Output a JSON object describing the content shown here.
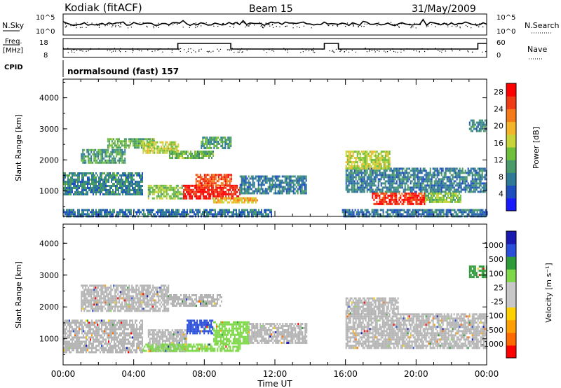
{
  "header": {
    "station": "Kodiak (fitACF)",
    "beam": "Beam 15",
    "date": "31/May/2009"
  },
  "status_panels": {
    "nsky_label": "N.Sky",
    "nsearch_label": "N.Search",
    "freq_label_1": "Freq.",
    "freq_label_2": "[MHz]",
    "nave_label": "Nave",
    "cpid_label": "CPID",
    "noise_left_ticks": [
      "10^5",
      "10^0"
    ],
    "noise_right_ticks": [
      "10^5",
      "10^0"
    ],
    "freq_ticks": [
      "18",
      "8"
    ],
    "nave_ticks": [
      "60",
      "0"
    ],
    "cpid_text": "normalsound (fast) 157"
  },
  "colors": {
    "power_scale": [
      "#1a1aff",
      "#1f4fbf",
      "#2f7a96",
      "#4a9a6a",
      "#6fbf3a",
      "#c8d43a",
      "#f5b52a",
      "#f57a1a",
      "#f03c14",
      "#ff0000"
    ],
    "velocity_scale": [
      "#ff0000",
      "#ff6a00",
      "#ff9f00",
      "#ffd000",
      "#c8c8c8",
      "#c8c8c8",
      "#7fd84a",
      "#2f9a3a",
      "#2a4fd8",
      "#1a1ab0"
    ],
    "ground_scatter": "#b4b4b4"
  },
  "chart_data": [
    {
      "type": "heatmap",
      "panel": "power",
      "ylabel": "Slant Range [km]",
      "ylim": [
        180,
        4600
      ],
      "y_ticks": [
        "1000",
        "2000",
        "3000",
        "4000"
      ],
      "x_ticks": [
        "00:00",
        "04:00",
        "08:00",
        "12:00",
        "16:00",
        "20:00",
        "00:00"
      ],
      "xlim_hours": [
        0,
        24
      ],
      "colorbar": {
        "label": "Power [dB]",
        "ticks": [
          "4",
          "8",
          "12",
          "16",
          "20",
          "24",
          "28"
        ],
        "range": [
          0,
          30
        ]
      },
      "regions": [
        {
          "t0": 0.0,
          "t1": 11.8,
          "r0": 200,
          "r1": 420,
          "value": 6
        },
        {
          "t0": 15.8,
          "t1": 24.0,
          "r0": 200,
          "r1": 420,
          "value": 6
        },
        {
          "t0": 0.0,
          "t1": 4.5,
          "r0": 900,
          "r1": 1600,
          "value": 8
        },
        {
          "t0": 1.0,
          "t1": 3.5,
          "r0": 1900,
          "r1": 2350,
          "value": 10
        },
        {
          "t0": 2.5,
          "t1": 5.2,
          "r0": 2400,
          "r1": 2700,
          "value": 12
        },
        {
          "t0": 4.5,
          "t1": 6.5,
          "r0": 2200,
          "r1": 2600,
          "value": 16
        },
        {
          "t0": 6.0,
          "t1": 8.5,
          "r0": 2050,
          "r1": 2300,
          "value": 12
        },
        {
          "t0": 7.8,
          "t1": 9.5,
          "r0": 2400,
          "r1": 2750,
          "value": 10
        },
        {
          "t0": 4.8,
          "t1": 6.8,
          "r0": 750,
          "r1": 1200,
          "value": 14
        },
        {
          "t0": 6.8,
          "t1": 10.0,
          "r0": 750,
          "r1": 1200,
          "value": 29
        },
        {
          "t0": 7.5,
          "t1": 9.5,
          "r0": 1150,
          "r1": 1550,
          "value": 26
        },
        {
          "t0": 10.0,
          "t1": 13.8,
          "r0": 900,
          "r1": 1500,
          "value": 7
        },
        {
          "t0": 8.5,
          "t1": 11.0,
          "r0": 600,
          "r1": 800,
          "value": 20
        },
        {
          "t0": 16.0,
          "t1": 24.0,
          "r0": 1000,
          "r1": 1750,
          "value": 7
        },
        {
          "t0": 16.0,
          "t1": 18.5,
          "r0": 1750,
          "r1": 2300,
          "value": 16
        },
        {
          "t0": 17.5,
          "t1": 20.5,
          "r0": 600,
          "r1": 950,
          "value": 28
        },
        {
          "t0": 20.5,
          "t1": 22.5,
          "r0": 650,
          "r1": 950,
          "value": 14
        },
        {
          "t0": 23.0,
          "t1": 24.0,
          "r0": 2950,
          "r1": 3300,
          "value": 8
        }
      ]
    },
    {
      "type": "heatmap",
      "panel": "velocity",
      "ylabel": "Slant Range [km]",
      "ylim": [
        180,
        4600
      ],
      "y_ticks": [
        "1000",
        "2000",
        "3000",
        "4000"
      ],
      "x_ticks": [
        "00:00",
        "04:00",
        "08:00",
        "12:00",
        "16:00",
        "20:00",
        "00:00"
      ],
      "xlim_hours": [
        0,
        24
      ],
      "xlabel": "Time UT",
      "colorbar": {
        "label": "Velocity [m s⁻¹]",
        "ticks": [
          "1000",
          "500",
          "100",
          "25",
          "-25",
          "-100",
          "-500",
          "-1000"
        ]
      },
      "regions": [
        {
          "t0": 0.0,
          "t1": 4.5,
          "r0": 600,
          "r1": 1600,
          "category": "ground"
        },
        {
          "t0": 1.0,
          "t1": 6.0,
          "r0": 1900,
          "r1": 2700,
          "category": "ground"
        },
        {
          "t0": 6.0,
          "t1": 9.0,
          "r0": 2050,
          "r1": 2400,
          "category": "ground"
        },
        {
          "t0": 4.8,
          "t1": 7.0,
          "r0": 600,
          "r1": 1300,
          "category": "ground"
        },
        {
          "t0": 7.0,
          "t1": 8.5,
          "r0": 1150,
          "r1": 1600,
          "category": "positive_high"
        },
        {
          "t0": 8.5,
          "t1": 10.5,
          "r0": 850,
          "r1": 1550,
          "category": "positive_mid"
        },
        {
          "t0": 4.5,
          "t1": 10.0,
          "r0": 650,
          "r1": 850,
          "category": "positive_mid"
        },
        {
          "t0": 10.5,
          "t1": 13.8,
          "r0": 850,
          "r1": 1500,
          "category": "ground"
        },
        {
          "t0": 16.0,
          "t1": 24.0,
          "r0": 700,
          "r1": 1800,
          "category": "ground"
        },
        {
          "t0": 16.0,
          "t1": 19.0,
          "r0": 1800,
          "r1": 2300,
          "category": "ground"
        },
        {
          "t0": 23.0,
          "t1": 24.0,
          "r0": 2950,
          "r1": 3300,
          "category": "positive_low"
        }
      ]
    }
  ]
}
